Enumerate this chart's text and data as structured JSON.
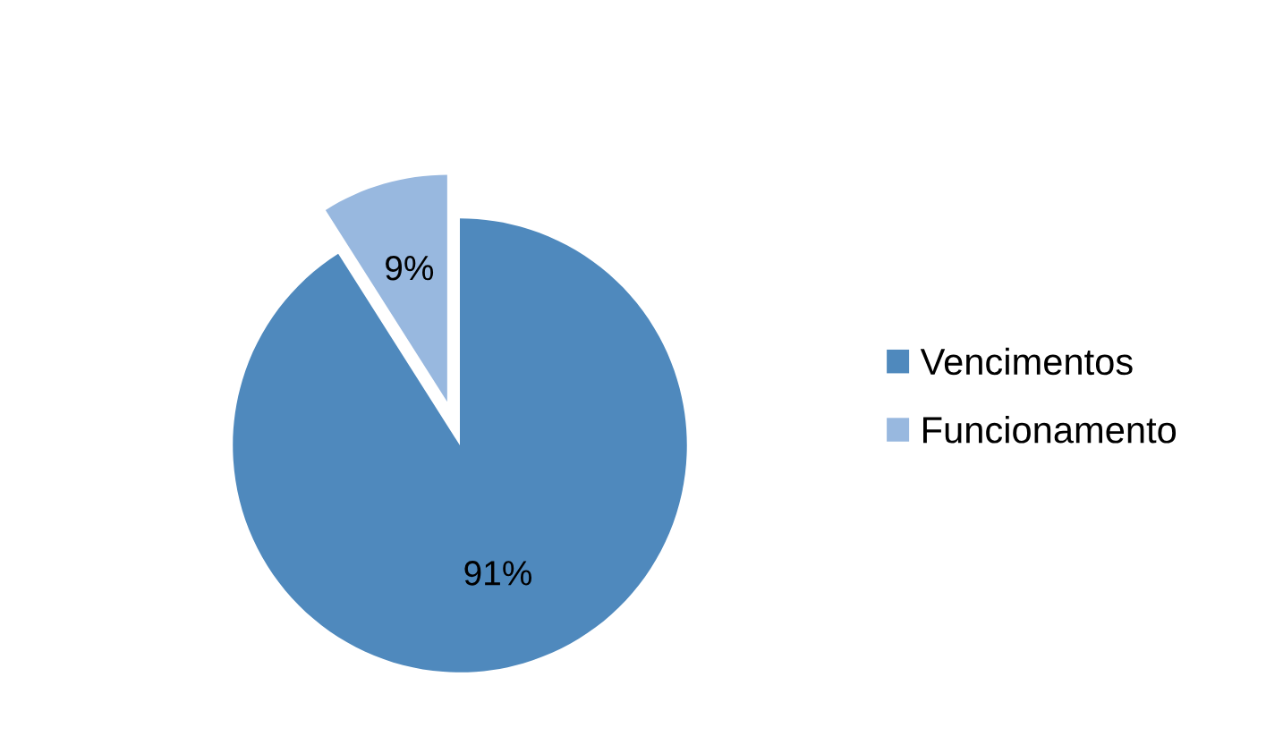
{
  "chart_data": {
    "type": "pie",
    "categories": [
      "Vencimentos",
      "Funcionamento"
    ],
    "values": [
      91,
      9
    ],
    "colors": [
      "#4f89bd",
      "#98b8df"
    ],
    "value_labels": [
      "91%",
      "9%"
    ],
    "legend": "right"
  }
}
